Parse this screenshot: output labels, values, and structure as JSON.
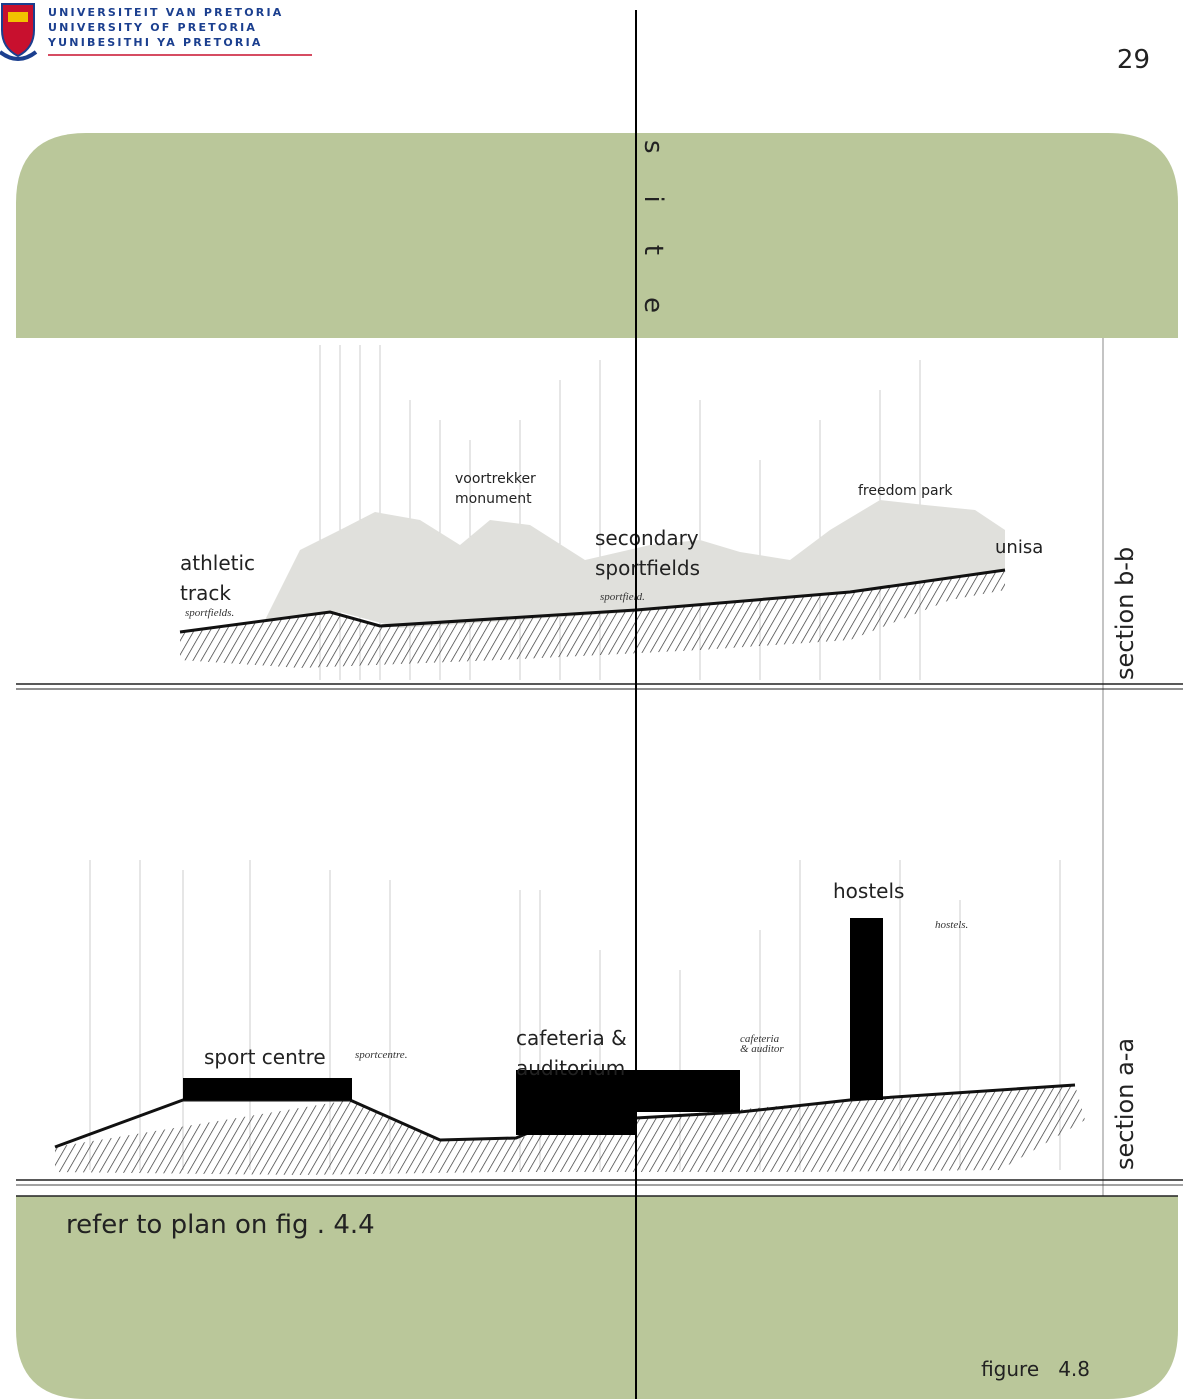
{
  "header": {
    "university": [
      "UNIVERSITEIT VAN PRETORIA",
      "UNIVERSITY OF PRETORIA",
      "YUNIBESITHI YA PRETORIA"
    ],
    "page_number": "29"
  },
  "title": "site",
  "sections": [
    {
      "label": "section b-b",
      "places": [
        "athletic",
        "track",
        "voortrekker",
        "monument",
        "secondary",
        "sportfields",
        "freedom park",
        "unisa"
      ],
      "sketch_notes": [
        "sportfields.",
        "sportfield."
      ]
    },
    {
      "label": "section a-a",
      "places": [
        "sport centre",
        "cafeteria &",
        "auditorium",
        "hostels"
      ],
      "sketch_notes": [
        "sportcentre.",
        "cafeteria",
        "& auditor",
        "hostels."
      ]
    }
  ],
  "footer": {
    "note": "refer to plan on fig . 4.4",
    "figure": "figure   4.8"
  }
}
